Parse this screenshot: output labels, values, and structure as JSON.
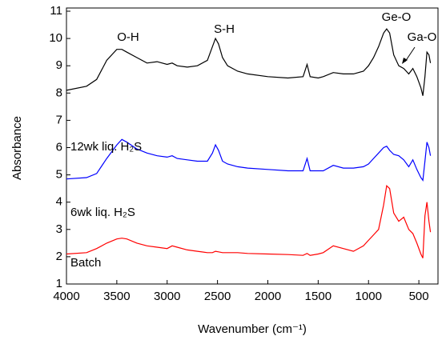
{
  "chart_data": {
    "type": "line",
    "xlabel": "Wavenumber (cm⁻¹)",
    "ylabel": "Absorbance",
    "x": [
      4000,
      3800,
      3700,
      3600,
      3500,
      3450,
      3400,
      3300,
      3200,
      3100,
      3000,
      2950,
      2900,
      2800,
      2700,
      2600,
      2550,
      2520,
      2490,
      2450,
      2400,
      2300,
      2200,
      2000,
      1800,
      1650,
      1610,
      1580,
      1500,
      1450,
      1350,
      1250,
      1150,
      1050,
      1000,
      950,
      900,
      850,
      820,
      790,
      750,
      700,
      650,
      600,
      560,
      520,
      480,
      460,
      440,
      420,
      400,
      385
    ],
    "series": [
      {
        "name": "12wk liq. H₂S",
        "color": "#000000",
        "values": [
          8.1,
          8.25,
          8.5,
          9.2,
          9.6,
          9.6,
          9.5,
          9.3,
          9.1,
          9.15,
          9.05,
          9.1,
          9.0,
          8.95,
          9.0,
          9.2,
          9.7,
          10.0,
          9.8,
          9.3,
          9.0,
          8.8,
          8.7,
          8.6,
          8.55,
          8.6,
          9.05,
          8.6,
          8.55,
          8.6,
          8.75,
          8.7,
          8.7,
          8.8,
          9.0,
          9.3,
          9.7,
          10.2,
          10.35,
          10.2,
          9.4,
          9.0,
          8.9,
          8.7,
          8.9,
          8.6,
          8.2,
          7.9,
          8.6,
          9.5,
          9.4,
          9.1
        ]
      },
      {
        "name": "6wk liq. H₂S",
        "color": "#0000ff",
        "values": [
          4.85,
          4.9,
          5.05,
          5.6,
          6.1,
          6.3,
          6.2,
          5.95,
          5.8,
          5.7,
          5.65,
          5.7,
          5.6,
          5.55,
          5.5,
          5.5,
          5.8,
          6.1,
          5.9,
          5.5,
          5.4,
          5.3,
          5.25,
          5.2,
          5.15,
          5.15,
          5.6,
          5.15,
          5.15,
          5.15,
          5.35,
          5.25,
          5.25,
          5.3,
          5.4,
          5.6,
          5.8,
          6.0,
          6.05,
          5.9,
          5.75,
          5.7,
          5.55,
          5.3,
          5.55,
          5.2,
          4.9,
          4.8,
          5.5,
          6.2,
          6.0,
          5.7
        ]
      },
      {
        "name": "Batch",
        "color": "#ff0000",
        "values": [
          2.1,
          2.15,
          2.3,
          2.5,
          2.65,
          2.68,
          2.65,
          2.5,
          2.4,
          2.35,
          2.3,
          2.4,
          2.35,
          2.25,
          2.2,
          2.15,
          2.15,
          2.2,
          2.18,
          2.15,
          2.15,
          2.15,
          2.12,
          2.1,
          2.08,
          2.05,
          2.12,
          2.05,
          2.1,
          2.15,
          2.4,
          2.3,
          2.2,
          2.4,
          2.6,
          2.8,
          3.0,
          3.9,
          4.6,
          4.5,
          3.6,
          3.3,
          3.45,
          3.0,
          2.85,
          2.5,
          2.1,
          1.95,
          3.5,
          4.0,
          3.3,
          2.9
        ]
      }
    ],
    "annotations": [
      "O-H",
      "S-H",
      "Ge-O",
      "Ga-O"
    ],
    "xlim": [
      4000,
      310
    ],
    "xticks": [
      4000,
      3500,
      3000,
      2500,
      2000,
      1500,
      1000,
      500
    ],
    "ylim": [
      1,
      11
    ],
    "yticks": [
      1,
      2,
      3,
      4,
      5,
      6,
      7,
      8,
      9,
      10,
      11
    ]
  }
}
